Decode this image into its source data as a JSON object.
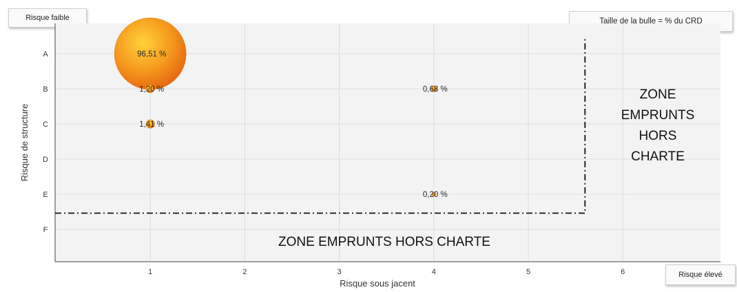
{
  "buttons": {
    "low_risk": "Risque faible",
    "legend_note": "Taille de la bulle = % du CRD",
    "high_risk": "Risque élevé"
  },
  "chart_data": {
    "type": "scatter",
    "subtype": "bubble",
    "title": "",
    "xlabel": "Risque sous jacent",
    "ylabel": "Risque de structure",
    "x_ticks": [
      "1",
      "2",
      "3",
      "4",
      "5",
      "6"
    ],
    "y_categories": [
      "A",
      "B",
      "C",
      "D",
      "E",
      "F"
    ],
    "xlim": [
      0,
      7
    ],
    "grid": true,
    "bubble_size_meaning": "% du CRD",
    "points": [
      {
        "x": 1,
        "y": "A",
        "value": 96.51,
        "label": "96,51 %"
      },
      {
        "x": 1,
        "y": "B",
        "value": 1.2,
        "label": "1,20 %"
      },
      {
        "x": 1,
        "y": "C",
        "value": 1.41,
        "label": "1,41 %"
      },
      {
        "x": 4,
        "y": "B",
        "value": 0.68,
        "label": "0,68 %"
      },
      {
        "x": 4,
        "y": "E",
        "value": 0.2,
        "label": "0,20 %"
      }
    ],
    "bubble_color": "#f08a1c",
    "zones": {
      "right_label_lines": [
        "ZONE",
        "EMPRUNTS",
        "HORS",
        "CHARTE"
      ],
      "bottom_label": "ZONE EMPRUNTS HORS CHARTE",
      "boundary_x": 5.6,
      "boundary_y": "between E and F"
    }
  }
}
